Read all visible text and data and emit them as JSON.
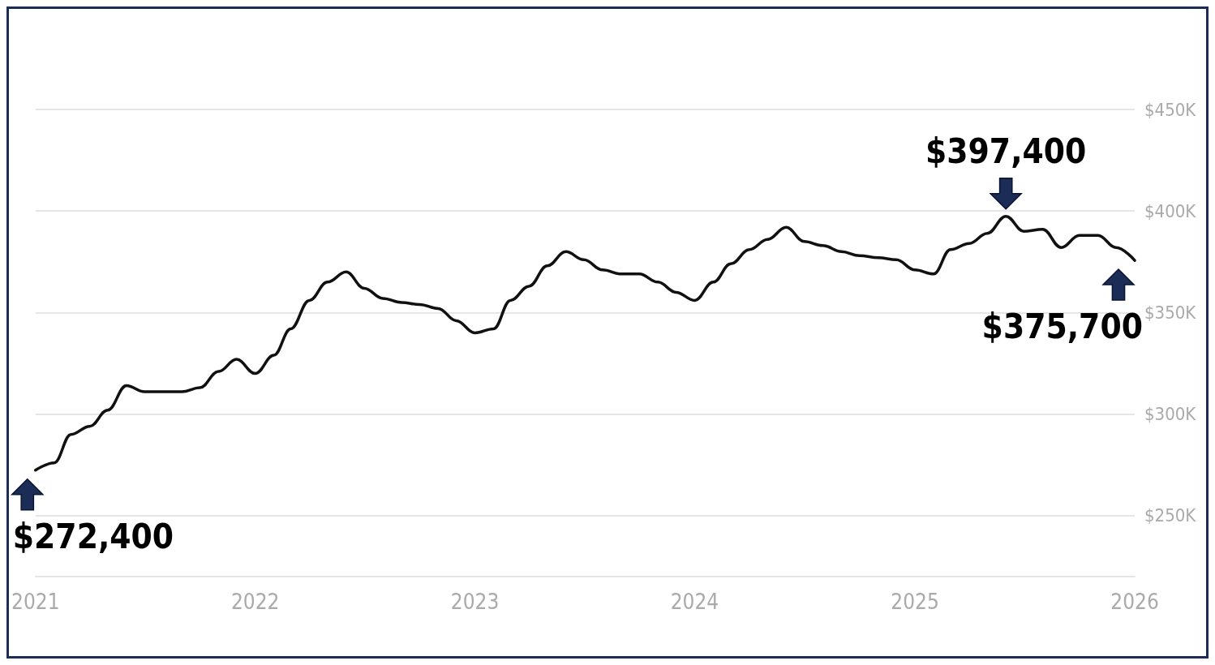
{
  "chart_data": {
    "type": "line",
    "x": [
      "2021-01",
      "2021-02",
      "2021-03",
      "2021-04",
      "2021-05",
      "2021-06",
      "2021-07",
      "2021-08",
      "2021-09",
      "2021-10",
      "2021-11",
      "2021-12",
      "2022-01",
      "2022-02",
      "2022-03",
      "2022-04",
      "2022-05",
      "2022-06",
      "2022-07",
      "2022-08",
      "2022-09",
      "2022-10",
      "2022-11",
      "2022-12",
      "2023-01",
      "2023-02",
      "2023-03",
      "2023-04",
      "2023-05",
      "2023-06",
      "2023-07",
      "2023-08",
      "2023-09",
      "2023-10",
      "2023-11",
      "2023-12",
      "2024-01",
      "2024-02",
      "2024-03",
      "2024-04",
      "2024-05",
      "2024-06",
      "2024-07",
      "2024-08",
      "2024-09",
      "2024-10",
      "2024-11",
      "2024-12",
      "2025-01",
      "2025-02",
      "2025-03",
      "2025-04",
      "2025-05",
      "2025-06",
      "2025-07",
      "2025-08",
      "2025-09",
      "2025-10",
      "2025-11",
      "2025-12",
      "2026-01"
    ],
    "series": [
      {
        "color": "#111111",
        "values": [
          272400,
          276000,
          290000,
          294000,
          302000,
          314000,
          311000,
          311000,
          311000,
          313000,
          321000,
          327000,
          320000,
          329000,
          342000,
          356000,
          365000,
          370000,
          362000,
          357000,
          355000,
          354000,
          352000,
          346000,
          340000,
          342000,
          356000,
          363000,
          373000,
          380000,
          376000,
          371000,
          369000,
          369000,
          365000,
          360000,
          356000,
          365000,
          374000,
          381000,
          386000,
          392000,
          385000,
          383000,
          380000,
          378000,
          377000,
          376000,
          371000,
          369000,
          381000,
          384000,
          389000,
          397400,
          390000,
          391000,
          382000,
          388000,
          388000,
          382000,
          375700
        ]
      }
    ],
    "xlim": [
      "2021-01",
      "2026-01"
    ],
    "xticks": [
      "2021",
      "2022",
      "2023",
      "2024",
      "2025",
      "2026"
    ],
    "ylim": [
      220000,
      450000
    ],
    "yticks": [
      {
        "value": 250000,
        "label": "$250K"
      },
      {
        "value": 300000,
        "label": "$300K"
      },
      {
        "value": 350000,
        "label": "$350K"
      },
      {
        "value": 400000,
        "label": "$400K"
      },
      {
        "value": 450000,
        "label": "$450K"
      }
    ],
    "grid": "y",
    "marker": "none",
    "line_style": "solid",
    "annotations": [
      {
        "text": "$272,400",
        "x": "2021-01",
        "y": 272400
      },
      {
        "text": "$397,400",
        "x": "2025-06",
        "y": 397400
      },
      {
        "text": "$375,700",
        "x": "2026-01",
        "y": 375700
      }
    ]
  }
}
